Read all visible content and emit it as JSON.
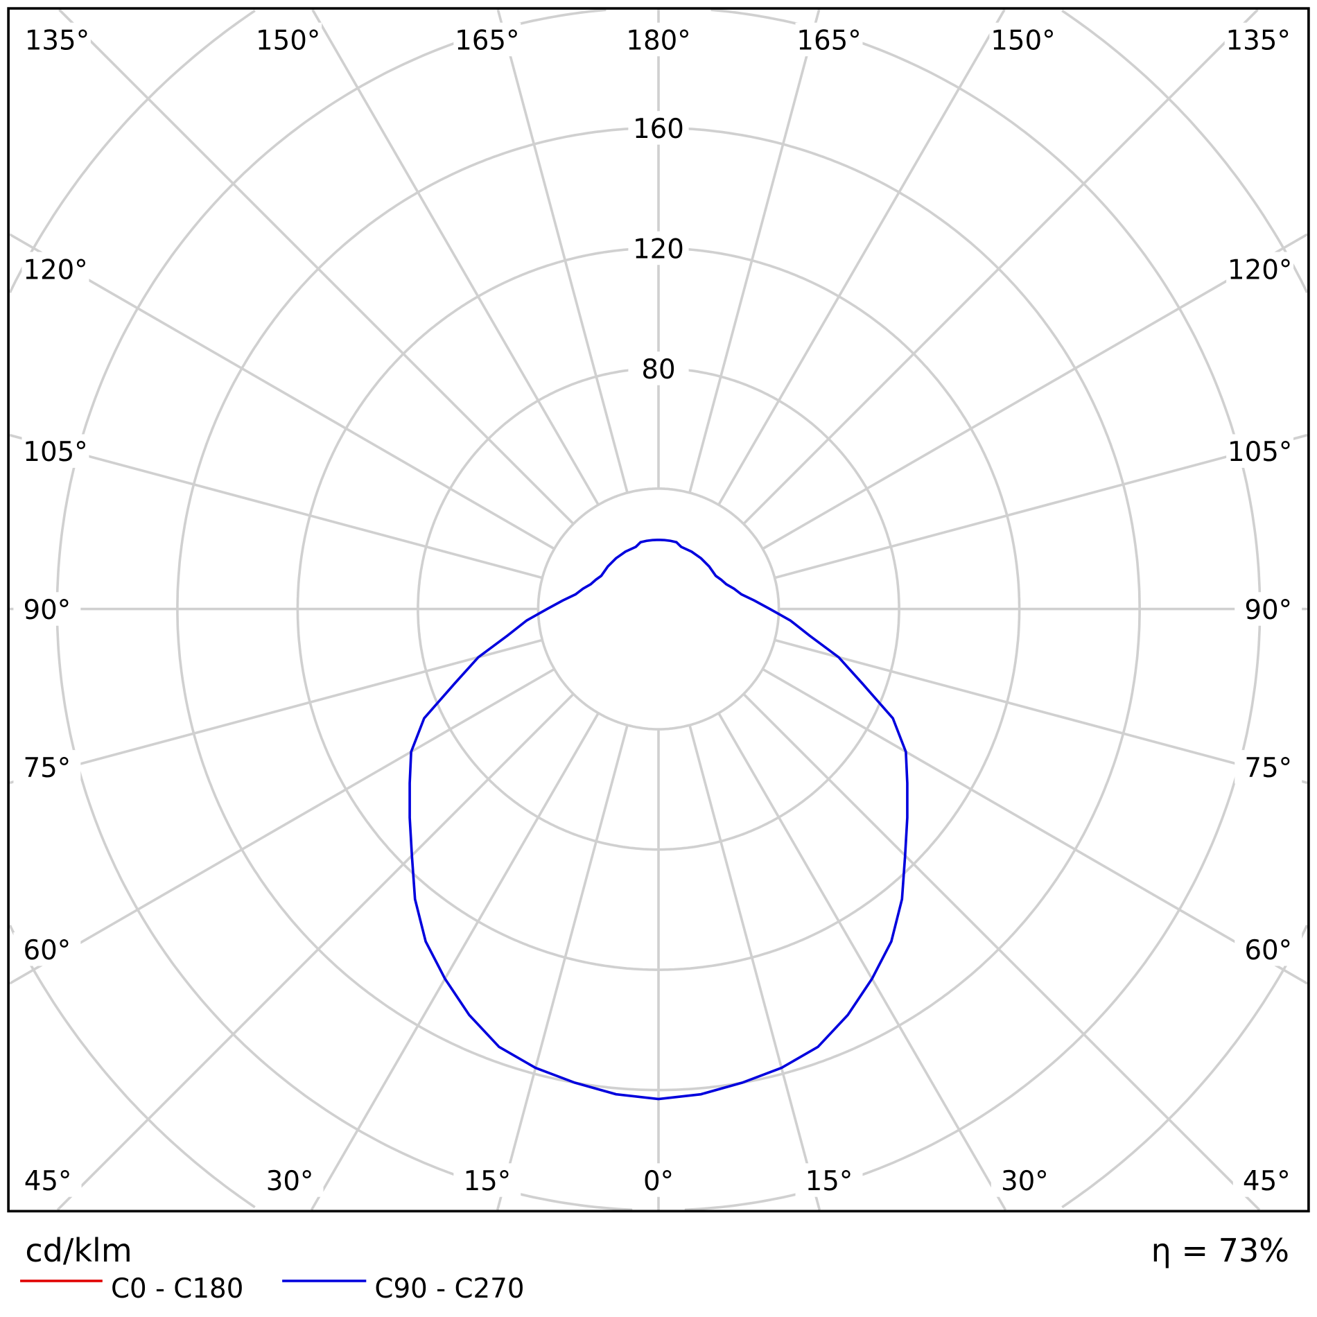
{
  "chart_data": {
    "type": "polar-line",
    "unit_label": "cd/klm",
    "efficiency_label": "η = 73%",
    "radial_ticks": [
      80,
      120,
      160
    ],
    "radial_rings": [
      40,
      80,
      120,
      160,
      200,
      240
    ],
    "angle_step_deg": 15,
    "angle_labels": {
      "top": [
        "135°",
        "150°",
        "165°",
        "180°",
        "165°",
        "150°",
        "135°"
      ],
      "left": [
        "120°",
        "105°",
        "90°",
        "75°",
        "60°"
      ],
      "right": [
        "120°",
        "105°",
        "90°",
        "75°",
        "60°"
      ],
      "bottom": [
        "45°",
        "30°",
        "15°",
        "0°",
        "15°",
        "30°",
        "45°"
      ]
    },
    "grid": true,
    "series": [
      {
        "name": "C0 - C180",
        "color": "#e00000",
        "gamma": [],
        "values": []
      },
      {
        "name": "C90 - C270",
        "color": "#0000dd",
        "gamma": [
          0,
          5,
          10,
          15,
          20,
          25,
          30,
          35,
          40,
          45,
          50,
          55,
          60,
          65,
          70,
          75,
          80,
          85,
          90,
          95,
          100,
          105,
          110,
          115,
          120,
          130,
          140,
          150,
          160,
          165,
          170,
          175,
          180
        ],
        "values": [
          163,
          162,
          160,
          158,
          155,
          149,
          142,
          135,
          126,
          116,
          108,
          101,
          95,
          86,
          72,
          62,
          51,
          44,
          37,
          32,
          28,
          26,
          24,
          23,
          22,
          22,
          22,
          22,
          22,
          23,
          23,
          23,
          23
        ]
      }
    ]
  }
}
